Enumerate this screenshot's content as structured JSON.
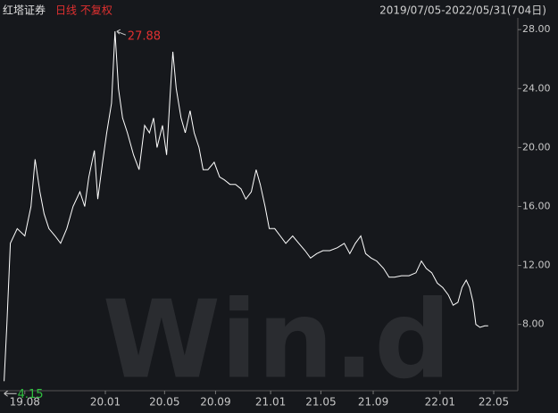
{
  "chart_data": {
    "type": "line",
    "title": "红塔证券",
    "subtitle": "日线 不复权",
    "date_range": "2019/07/05-2022/05/31(704日)",
    "watermark": "Win.d",
    "x": [
      0,
      4,
      9,
      19,
      30,
      39,
      45,
      52,
      58,
      65,
      74,
      82,
      91,
      100,
      110,
      117,
      123,
      131,
      136,
      143,
      149,
      156,
      161,
      166,
      172,
      179,
      188,
      196,
      204,
      211,
      217,
      222,
      230,
      236,
      241,
      245,
      250,
      257,
      263,
      270,
      276,
      283,
      289,
      296,
      305,
      313,
      320,
      328,
      336,
      344,
      351,
      359,
      366,
      372,
      379,
      385,
      393,
      401,
      409,
      419,
      428,
      437,
      445,
      454,
      463,
      473,
      484,
      494,
      502,
      510,
      518,
      525,
      533,
      541,
      551,
      559,
      567,
      577,
      588,
      598,
      606,
      613,
      621,
      629,
      637,
      645,
      652,
      659,
      665,
      671,
      676,
      681,
      685,
      691,
      698,
      703
    ],
    "series": [
      {
        "name": "红塔证券",
        "color": "#ffffff",
        "values": [
          4.15,
          8,
          13.5,
          14.5,
          14,
          16,
          19.2,
          17,
          15.5,
          14.5,
          14,
          13.5,
          14.5,
          16,
          17,
          16,
          18,
          19.8,
          16.5,
          19,
          21,
          23,
          27.88,
          24,
          22,
          21,
          19.5,
          18.5,
          21.5,
          21,
          22,
          20,
          21.5,
          19.5,
          23.5,
          26.5,
          24,
          22,
          21,
          22.5,
          21,
          20,
          18.5,
          18.5,
          19,
          18,
          17.8,
          17.5,
          17.5,
          17.2,
          16.5,
          17,
          18.5,
          17.5,
          16,
          14.5,
          14.5,
          14,
          13.5,
          14,
          13.5,
          13,
          12.5,
          12.8,
          13,
          13,
          13.2,
          13.5,
          12.8,
          13.5,
          14,
          12.8,
          12.5,
          12.3,
          11.8,
          11.2,
          11.2,
          11.3,
          11.3,
          11.5,
          12.3,
          11.8,
          11.5,
          10.8,
          10.5,
          10,
          9.3,
          9.5,
          10.5,
          11,
          10.5,
          9.5,
          8,
          7.8,
          7.9,
          7.9
        ]
      }
    ],
    "max_value": 27.88,
    "max_x": 161,
    "min_value": 4.15,
    "min_x": 0,
    "xlim": [
      -6,
      746
    ],
    "xticks": [
      {
        "value": 30,
        "label": "19.08"
      },
      {
        "value": 147,
        "label": "20.01"
      },
      {
        "value": 233,
        "label": "20.05"
      },
      {
        "value": 307,
        "label": "20.09"
      },
      {
        "value": 387,
        "label": "21.01"
      },
      {
        "value": 460,
        "label": "21.05"
      },
      {
        "value": 536,
        "label": "21.09"
      },
      {
        "value": 633,
        "label": "22.01"
      },
      {
        "value": 711,
        "label": "22.05"
      }
    ],
    "ylim": [
      3.5,
      28.8
    ],
    "yticks": [
      {
        "value": 8,
        "label": "8.00"
      },
      {
        "value": 12,
        "label": "12.00"
      },
      {
        "value": 16,
        "label": "16.00"
      },
      {
        "value": 20,
        "label": "20.00"
      },
      {
        "value": 24,
        "label": "24.00"
      },
      {
        "value": 28,
        "label": "28.00"
      }
    ]
  }
}
